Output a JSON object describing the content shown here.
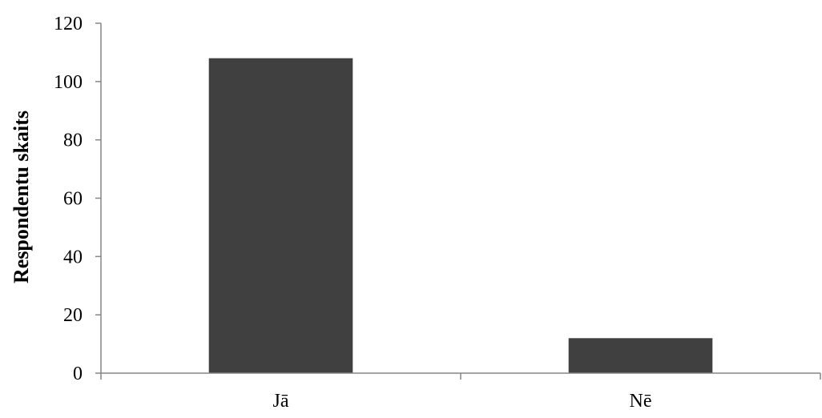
{
  "chart_data": {
    "type": "bar",
    "title": "",
    "xlabel": "",
    "ylabel": "Respondentu skaits",
    "categories": [
      "Jā",
      "Nē"
    ],
    "values": [
      108,
      12
    ],
    "ylim": [
      0,
      120
    ],
    "yticks": [
      0,
      20,
      40,
      60,
      80,
      100,
      120
    ],
    "grid": false,
    "legend": "none",
    "bar_color": "#404040",
    "axis_color": "#868686"
  }
}
